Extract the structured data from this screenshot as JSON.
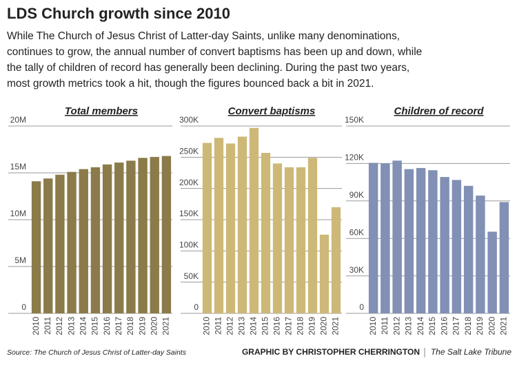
{
  "title": "LDS Church growth since 2010",
  "subtitle": [
    "While The Church of Jesus Christ of Latter-day Saints, unlike many denominations,",
    "continues to grow, the annual number of convert baptisms has been up and down, while",
    "the tally of children of record has generally been declining. During the past two years,",
    "most growth metrics took a hit, though the figures bounced back a bit in 2021."
  ],
  "chart_data": [
    {
      "type": "bar",
      "title": "Total members",
      "color": "#8b7a4a",
      "grid": true,
      "categories": [
        "2010",
        "2011",
        "2012",
        "2013",
        "2014",
        "2015",
        "2016",
        "2017",
        "2018",
        "2019",
        "2020",
        "2021"
      ],
      "values": [
        14100000,
        14400000,
        14800000,
        15100000,
        15400000,
        15600000,
        15900000,
        16100000,
        16300000,
        16600000,
        16700000,
        16800000
      ],
      "ylim": [
        0,
        20000000
      ],
      "yticks": [
        0,
        {
          "value": 5000000,
          "label": "5M"
        },
        {
          "value": 10000000,
          "label": "10M"
        },
        {
          "value": 15000000,
          "label": "15M"
        },
        {
          "value": 20000000,
          "label": "20M"
        }
      ]
    },
    {
      "type": "bar",
      "title": "Convert baptisms",
      "color": "#cdb878",
      "grid": true,
      "categories": [
        "2010",
        "2011",
        "2012",
        "2013",
        "2014",
        "2015",
        "2016",
        "2017",
        "2018",
        "2019",
        "2020",
        "2021"
      ],
      "values": [
        273000,
        281000,
        272000,
        283000,
        297000,
        257000,
        240000,
        234000,
        234000,
        249000,
        126000,
        170000
      ],
      "ylim": [
        0,
        300000
      ],
      "yticks": [
        0,
        {
          "value": 50000,
          "label": "50K"
        },
        {
          "value": 100000,
          "label": "100K"
        },
        {
          "value": 150000,
          "label": "150K"
        },
        {
          "value": 200000,
          "label": "200K"
        },
        {
          "value": 250000,
          "label": "250K"
        },
        {
          "value": 300000,
          "label": "300K"
        }
      ]
    },
    {
      "type": "bar",
      "title": "Children of record",
      "color": "#8190b4",
      "grid": true,
      "categories": [
        "2010",
        "2011",
        "2012",
        "2013",
        "2014",
        "2015",
        "2016",
        "2017",
        "2018",
        "2019",
        "2020",
        "2021"
      ],
      "values": [
        120500,
        120000,
        122300,
        115500,
        116400,
        114600,
        109200,
        106800,
        102100,
        94300,
        65400,
        89100
      ],
      "ylim": [
        0,
        150000
      ],
      "yticks": [
        0,
        {
          "value": 30000,
          "label": "30K"
        },
        {
          "value": 60000,
          "label": "60K"
        },
        {
          "value": 90000,
          "label": "90K"
        },
        {
          "value": 120000,
          "label": "120K"
        },
        {
          "value": 150000,
          "label": "150K"
        }
      ]
    }
  ],
  "source": "Source: The Church of Jesus Christ of Latter-day Saints",
  "credit": {
    "graphic": "GRAPHIC BY CHRISTOPHER CHERRINGTON",
    "outlet": "The Salt Lake Tribune"
  }
}
